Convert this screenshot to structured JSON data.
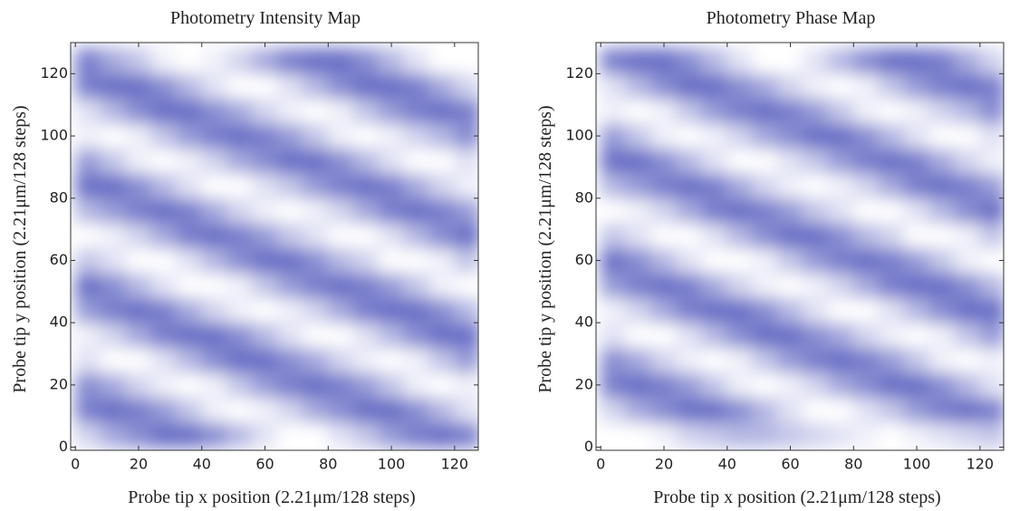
{
  "chart_data": [
    {
      "type": "heatmap",
      "title": "Photometry Intensity Map",
      "xlabel": "Probe tip x position (2.21μm/128 steps)",
      "ylabel": "Probe tip y position (2.21μm/128 steps)",
      "xlim": [
        -1.5,
        127.5
      ],
      "ylim": [
        -1,
        130
      ],
      "xticks": [
        0,
        20,
        40,
        60,
        80,
        100,
        120
      ],
      "yticks": [
        0,
        20,
        40,
        60,
        80,
        100,
        120
      ],
      "colormap": [
        "#ffffff",
        "#6a70c6"
      ],
      "x": [
        4,
        12,
        20,
        28,
        36,
        44,
        52,
        60,
        68,
        76,
        84,
        92,
        100,
        108,
        116,
        124
      ],
      "y": [
        4,
        12,
        20,
        28,
        36,
        44,
        52,
        60,
        68,
        76,
        84,
        92,
        100,
        108,
        116,
        124
      ],
      "z": [
        [
          0.3,
          0.6,
          0.8,
          1.0,
          1.0,
          0.8,
          0.5,
          0.2,
          0.0,
          0.0,
          0.2,
          0.4,
          0.7,
          0.9,
          1.0,
          0.9
        ],
        [
          0.9,
          1.0,
          0.9,
          0.7,
          0.4,
          0.1,
          0.0,
          0.1,
          0.3,
          0.6,
          0.8,
          1.0,
          1.0,
          0.8,
          0.5,
          0.2
        ],
        [
          0.8,
          0.6,
          0.3,
          0.1,
          0.0,
          0.1,
          0.4,
          0.7,
          0.9,
          1.0,
          0.9,
          0.7,
          0.4,
          0.1,
          0.0,
          0.1
        ],
        [
          0.2,
          0.0,
          0.0,
          0.2,
          0.5,
          0.8,
          1.0,
          1.0,
          0.8,
          0.6,
          0.3,
          0.1,
          0.0,
          0.1,
          0.4,
          0.7
        ],
        [
          0.1,
          0.3,
          0.6,
          0.9,
          1.0,
          1.0,
          0.8,
          0.5,
          0.2,
          0.0,
          0.0,
          0.2,
          0.5,
          0.8,
          1.0,
          1.0
        ],
        [
          0.7,
          0.9,
          1.0,
          0.9,
          0.6,
          0.3,
          0.1,
          0.0,
          0.1,
          0.3,
          0.6,
          0.9,
          1.0,
          1.0,
          0.8,
          0.5
        ],
        [
          1.0,
          0.8,
          0.5,
          0.2,
          0.0,
          0.0,
          0.1,
          0.4,
          0.7,
          0.9,
          1.0,
          0.9,
          0.7,
          0.4,
          0.1,
          0.0
        ],
        [
          0.4,
          0.2,
          0.0,
          0.0,
          0.2,
          0.5,
          0.8,
          1.0,
          1.0,
          0.8,
          0.5,
          0.3,
          0.0,
          0.0,
          0.1,
          0.4
        ],
        [
          0.0,
          0.1,
          0.3,
          0.6,
          0.9,
          1.0,
          0.9,
          0.7,
          0.4,
          0.2,
          0.0,
          0.0,
          0.2,
          0.5,
          0.8,
          1.0
        ],
        [
          0.5,
          0.7,
          0.9,
          1.0,
          0.9,
          0.6,
          0.3,
          0.1,
          0.0,
          0.1,
          0.3,
          0.6,
          0.9,
          1.0,
          0.9,
          0.7
        ],
        [
          1.0,
          1.0,
          0.8,
          0.5,
          0.2,
          0.0,
          0.0,
          0.2,
          0.4,
          0.7,
          0.9,
          1.0,
          0.9,
          0.6,
          0.3,
          0.1
        ],
        [
          0.7,
          0.4,
          0.1,
          0.0,
          0.1,
          0.3,
          0.6,
          0.8,
          1.0,
          1.0,
          0.8,
          0.5,
          0.2,
          0.0,
          0.0,
          0.2
        ],
        [
          0.1,
          0.0,
          0.1,
          0.4,
          0.7,
          0.9,
          1.0,
          0.9,
          0.7,
          0.4,
          0.1,
          0.0,
          0.1,
          0.3,
          0.5,
          0.8
        ],
        [
          0.2,
          0.5,
          0.8,
          1.0,
          1.0,
          0.8,
          0.6,
          0.3,
          0.1,
          0.0,
          0.1,
          0.4,
          0.7,
          0.9,
          1.0,
          0.9
        ],
        [
          0.9,
          1.0,
          1.0,
          0.8,
          0.5,
          0.2,
          0.0,
          0.0,
          0.2,
          0.5,
          0.8,
          1.0,
          1.0,
          0.9,
          0.6,
          0.3
        ],
        [
          0.9,
          0.6,
          0.4,
          0.1,
          0.0,
          0.1,
          0.3,
          0.6,
          0.9,
          1.0,
          1.0,
          0.8,
          0.5,
          0.2,
          0.0,
          0.0
        ]
      ]
    },
    {
      "type": "heatmap",
      "title": "Photometry Phase Map",
      "xlabel": "Probe tip x position (2.21μm/128 steps)",
      "ylabel": "Probe tip y position (2.21μm/128 steps)",
      "xlim": [
        -1.5,
        127.5
      ],
      "ylim": [
        -1,
        130
      ],
      "xticks": [
        0,
        20,
        40,
        60,
        80,
        100,
        120
      ],
      "yticks": [
        0,
        20,
        40,
        60,
        80,
        100,
        120
      ],
      "colormap": [
        "#ffffff",
        "#6a70c6"
      ],
      "x": [
        4,
        12,
        20,
        28,
        36,
        44,
        52,
        60,
        68,
        76,
        84,
        92,
        100,
        108,
        116,
        124
      ],
      "y": [
        4,
        12,
        20,
        28,
        36,
        44,
        52,
        60,
        68,
        76,
        84,
        92,
        100,
        108,
        116,
        124
      ],
      "z": [
        [
          0.0,
          0.0,
          0.1,
          0.3,
          0.4,
          0.5,
          0.5,
          0.4,
          0.3,
          0.2,
          0.1,
          0.0,
          0.1,
          0.2,
          0.3,
          0.4
        ],
        [
          0.3,
          0.6,
          0.8,
          1.0,
          1.0,
          0.8,
          0.5,
          0.2,
          0.0,
          0.0,
          0.2,
          0.4,
          0.7,
          0.9,
          1.0,
          0.9
        ],
        [
          0.9,
          1.0,
          0.9,
          0.7,
          0.4,
          0.1,
          0.0,
          0.1,
          0.3,
          0.6,
          0.8,
          1.0,
          1.0,
          0.8,
          0.5,
          0.2
        ],
        [
          0.8,
          0.6,
          0.3,
          0.1,
          0.0,
          0.1,
          0.4,
          0.7,
          0.9,
          1.0,
          0.9,
          0.7,
          0.4,
          0.1,
          0.0,
          0.1
        ],
        [
          0.2,
          0.0,
          0.0,
          0.2,
          0.5,
          0.8,
          1.0,
          1.0,
          0.8,
          0.6,
          0.3,
          0.1,
          0.0,
          0.1,
          0.4,
          0.7
        ],
        [
          0.1,
          0.3,
          0.6,
          0.9,
          1.0,
          1.0,
          0.8,
          0.5,
          0.2,
          0.0,
          0.0,
          0.2,
          0.5,
          0.8,
          1.0,
          1.0
        ],
        [
          0.7,
          0.9,
          1.0,
          0.9,
          0.6,
          0.3,
          0.1,
          0.0,
          0.1,
          0.3,
          0.6,
          0.9,
          1.0,
          1.0,
          0.8,
          0.5
        ],
        [
          1.0,
          0.8,
          0.5,
          0.2,
          0.0,
          0.0,
          0.1,
          0.4,
          0.7,
          0.9,
          1.0,
          0.9,
          0.7,
          0.4,
          0.1,
          0.0
        ],
        [
          0.4,
          0.2,
          0.0,
          0.0,
          0.2,
          0.5,
          0.8,
          1.0,
          1.0,
          0.8,
          0.5,
          0.3,
          0.0,
          0.0,
          0.1,
          0.4
        ],
        [
          0.0,
          0.1,
          0.3,
          0.6,
          0.9,
          1.0,
          0.9,
          0.7,
          0.4,
          0.2,
          0.0,
          0.0,
          0.2,
          0.5,
          0.8,
          1.0
        ],
        [
          0.5,
          0.7,
          0.9,
          1.0,
          0.9,
          0.6,
          0.3,
          0.1,
          0.0,
          0.1,
          0.3,
          0.6,
          0.9,
          1.0,
          0.9,
          0.7
        ],
        [
          1.0,
          1.0,
          0.8,
          0.5,
          0.2,
          0.0,
          0.0,
          0.2,
          0.4,
          0.7,
          0.9,
          1.0,
          0.9,
          0.6,
          0.3,
          0.1
        ],
        [
          0.7,
          0.4,
          0.1,
          0.0,
          0.1,
          0.3,
          0.6,
          0.8,
          1.0,
          1.0,
          0.8,
          0.5,
          0.2,
          0.0,
          0.0,
          0.2
        ],
        [
          0.1,
          0.0,
          0.1,
          0.4,
          0.7,
          0.9,
          1.0,
          0.9,
          0.7,
          0.4,
          0.1,
          0.0,
          0.1,
          0.3,
          0.5,
          0.8
        ],
        [
          0.2,
          0.5,
          0.8,
          1.0,
          1.0,
          0.8,
          0.6,
          0.3,
          0.1,
          0.0,
          0.1,
          0.4,
          0.7,
          0.9,
          1.0,
          0.9
        ],
        [
          0.9,
          1.0,
          1.0,
          0.8,
          0.5,
          0.2,
          0.0,
          0.0,
          0.2,
          0.5,
          0.8,
          1.0,
          1.0,
          0.9,
          0.6,
          0.3
        ]
      ]
    }
  ]
}
